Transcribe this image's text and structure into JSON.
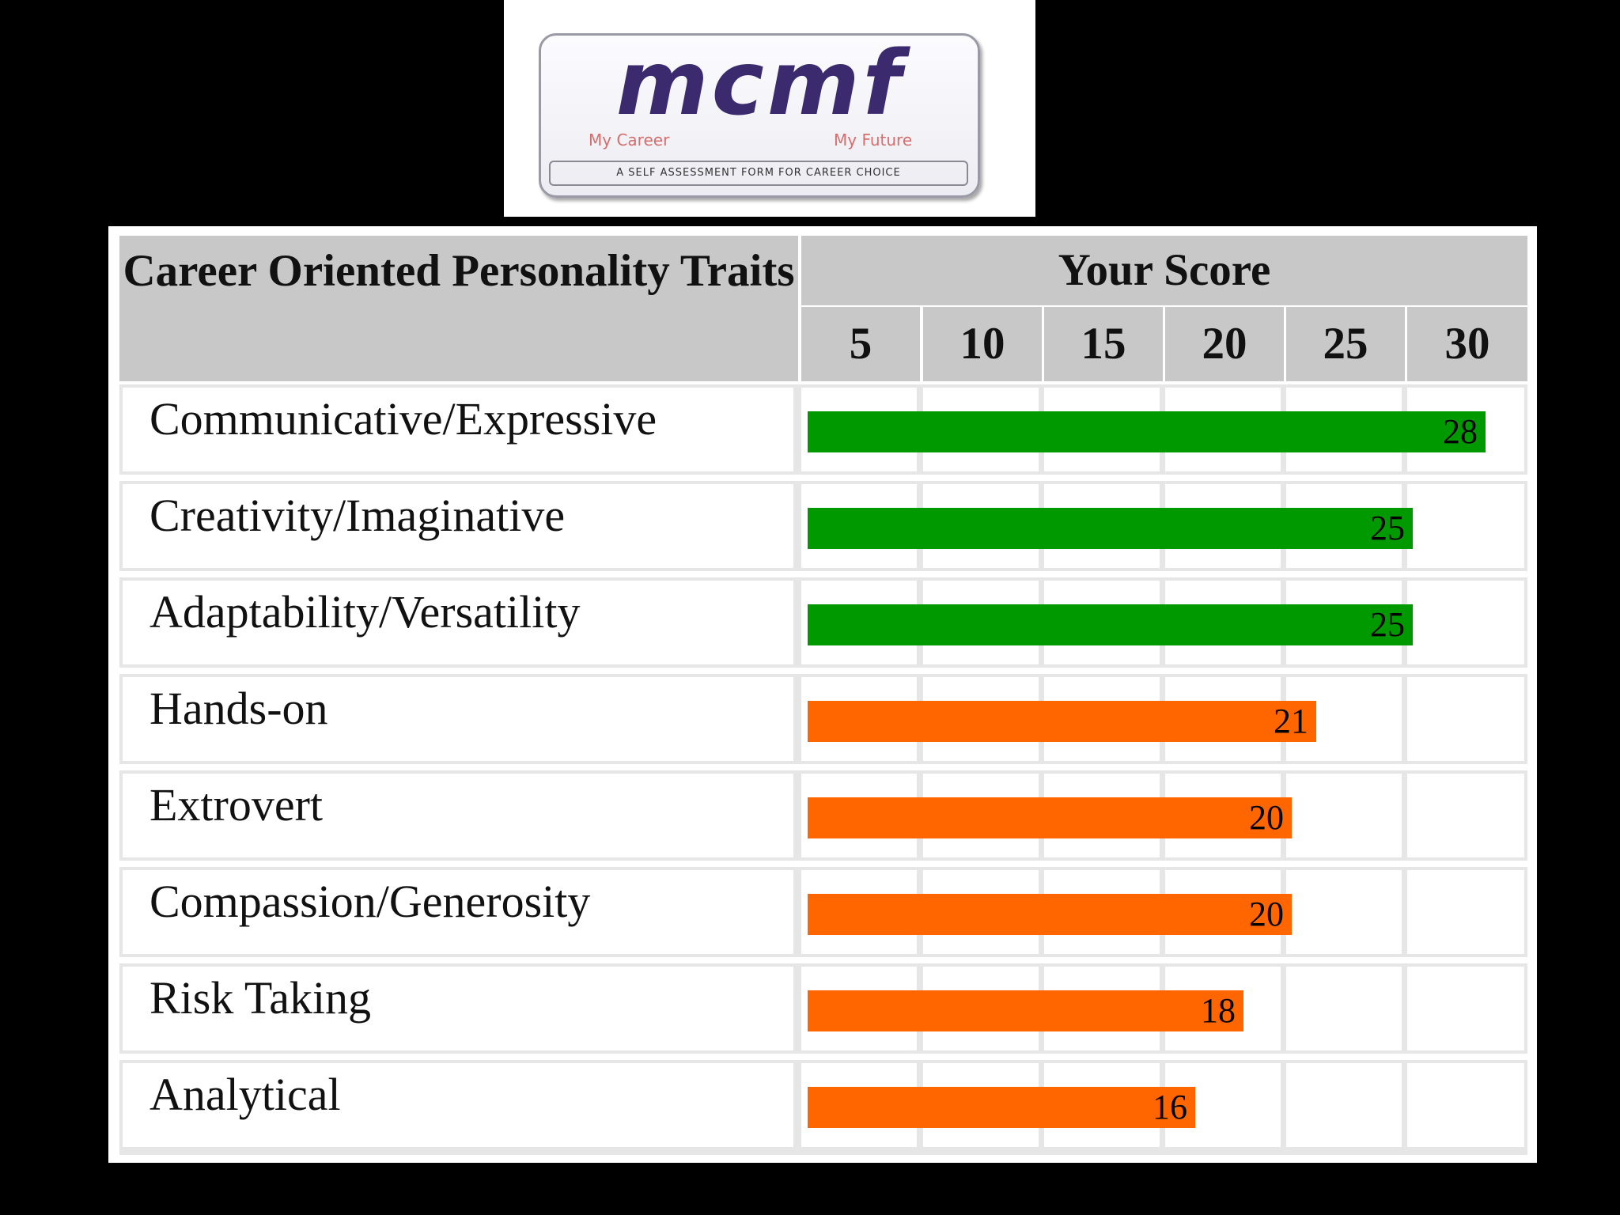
{
  "logo": {
    "wordmark": "mcmf",
    "sub_left": "My Career",
    "sub_right": "My Future",
    "tagline": "A SELF ASSESSMENT FORM FOR CAREER CHOICE"
  },
  "colors": {
    "high": "#009900",
    "mid": "#ff6600"
  },
  "chart_data": {
    "type": "bar",
    "orientation": "horizontal",
    "categories_header": "Career Oriented Personality Traits",
    "value_header": "Your Score",
    "ticks": [
      5,
      10,
      15,
      20,
      25,
      30
    ],
    "xlim": [
      0,
      30
    ],
    "grid": true,
    "categories": [
      "Communicative/Expressive",
      "Creativity/Imaginative",
      "Adaptability/Versatility",
      "Hands-on",
      "Extrovert",
      "Compassion/Generosity",
      "Risk Taking",
      "Analytical"
    ],
    "values": [
      28,
      25,
      25,
      21,
      20,
      20,
      18,
      16
    ],
    "bar_colors": [
      "high",
      "high",
      "high",
      "mid",
      "mid",
      "mid",
      "mid",
      "mid"
    ]
  }
}
